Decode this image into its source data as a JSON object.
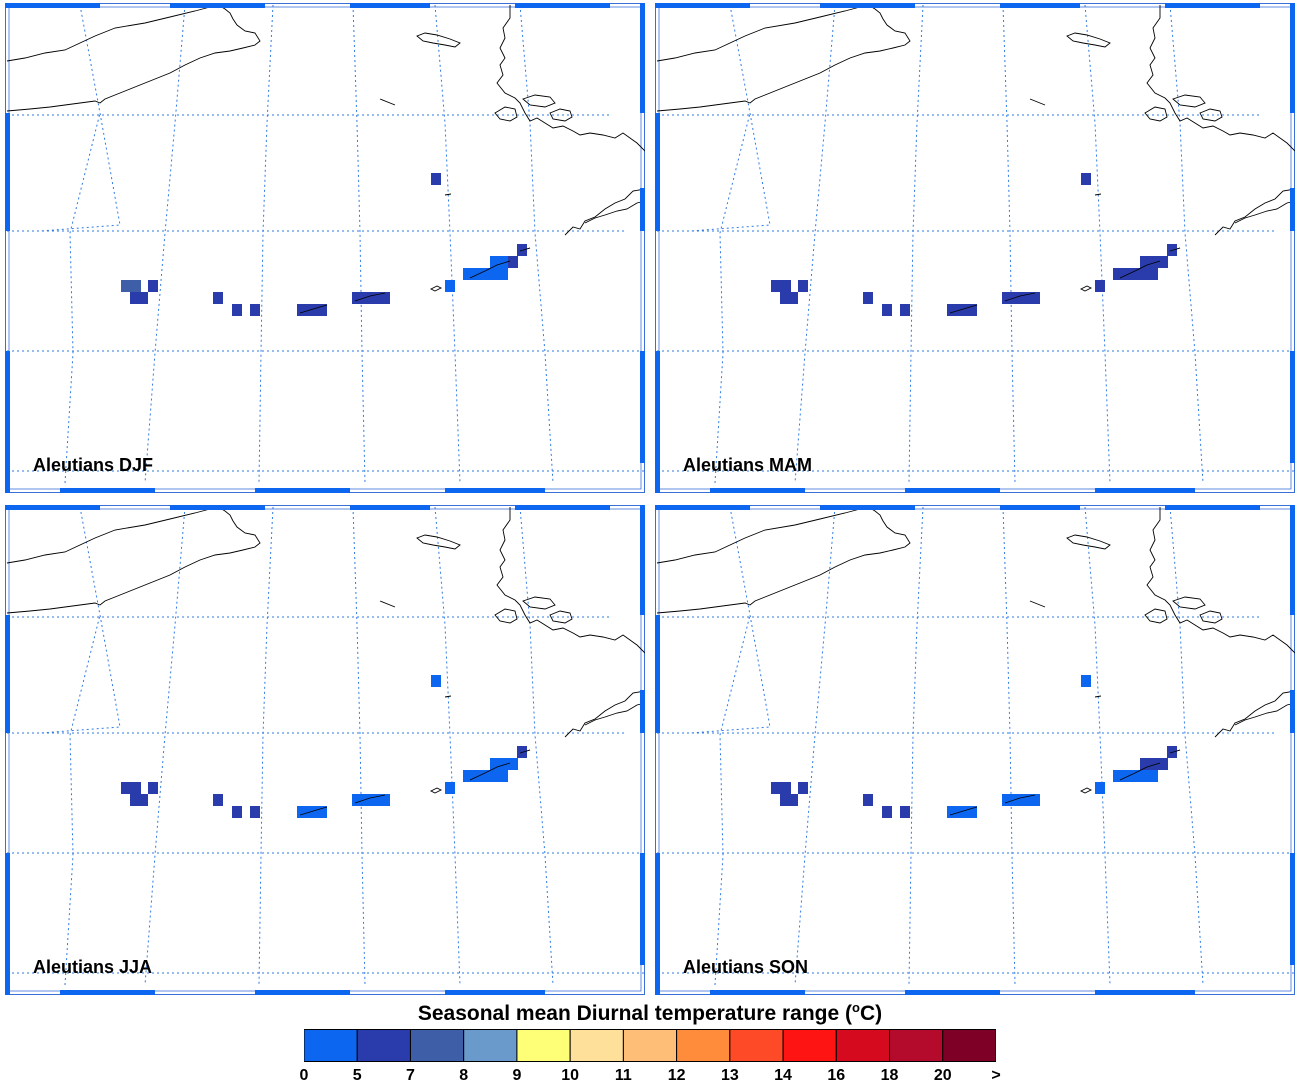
{
  "panels": [
    {
      "label": "Aleutians DJF",
      "variant": "djf"
    },
    {
      "label": "Aleutians MAM",
      "variant": "mam"
    },
    {
      "label": "Aleutians JJA",
      "variant": "jja"
    },
    {
      "label": "Aleutians SON",
      "variant": "son"
    }
  ],
  "legend": {
    "title": "Seasonal mean Diurnal temperature range (",
    "title_unit_sup": "o",
    "title_unit_tail": "C)",
    "ticks": [
      "0",
      "5",
      "7",
      "8",
      "9",
      "10",
      "11",
      "12",
      "13",
      "14",
      "16",
      "18",
      "20",
      ">"
    ],
    "colors": [
      "#0d66f0",
      "#2a3cab",
      "#3e5ea8",
      "#6a99cb",
      "#ffff77",
      "#ffe09a",
      "#ffbe78",
      "#ff8c3a",
      "#ff4a28",
      "#ff1414",
      "#d50a1e",
      "#b40a2b",
      "#7f0027"
    ]
  },
  "colors": {
    "frame_accent": "#0d66f0",
    "graticule": "#2e7be6",
    "coastline": "#000000"
  }
}
